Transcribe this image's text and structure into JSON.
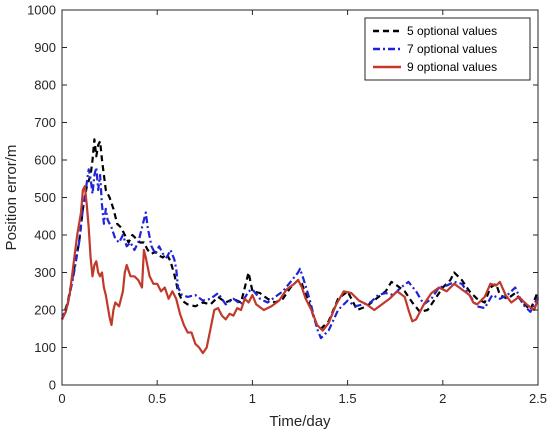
{
  "chart_data": {
    "type": "line",
    "xlabel": "Time/day",
    "ylabel": "Position error/m",
    "xlim": [
      0,
      2.5
    ],
    "ylim": [
      0,
      1000
    ],
    "xticks": [
      0,
      0.5,
      1,
      1.5,
      2,
      2.5
    ],
    "xtick_labels": [
      "0",
      "0.5",
      "1",
      "1.5",
      "2",
      "2.5"
    ],
    "yticks": [
      0,
      100,
      200,
      300,
      400,
      500,
      600,
      700,
      800,
      900,
      1000
    ],
    "ytick_labels": [
      "0",
      "100",
      "200",
      "300",
      "400",
      "500",
      "600",
      "700",
      "800",
      "900",
      "1000"
    ],
    "grid": false,
    "legend_position": "top-right",
    "series": [
      {
        "name": "5 optional values",
        "color": "#000000",
        "dash": "dashed",
        "points": [
          [
            0,
            175
          ],
          [
            0.03,
            220
          ],
          [
            0.06,
            300
          ],
          [
            0.09,
            380
          ],
          [
            0.11,
            470
          ],
          [
            0.13,
            530
          ],
          [
            0.15,
            560
          ],
          [
            0.16,
            600
          ],
          [
            0.17,
            655
          ],
          [
            0.18,
            610
          ],
          [
            0.19,
            640
          ],
          [
            0.2,
            650
          ],
          [
            0.21,
            600
          ],
          [
            0.22,
            560
          ],
          [
            0.23,
            520
          ],
          [
            0.25,
            500
          ],
          [
            0.27,
            470
          ],
          [
            0.29,
            430
          ],
          [
            0.31,
            420
          ],
          [
            0.33,
            400
          ],
          [
            0.35,
            380
          ],
          [
            0.37,
            400
          ],
          [
            0.39,
            390
          ],
          [
            0.41,
            380
          ],
          [
            0.43,
            380
          ],
          [
            0.45,
            360
          ],
          [
            0.47,
            350
          ],
          [
            0.49,
            355
          ],
          [
            0.51,
            345
          ],
          [
            0.53,
            340
          ],
          [
            0.55,
            350
          ],
          [
            0.57,
            330
          ],
          [
            0.59,
            295
          ],
          [
            0.61,
            250
          ],
          [
            0.63,
            225
          ],
          [
            0.66,
            215
          ],
          [
            0.7,
            210
          ],
          [
            0.74,
            220
          ],
          [
            0.78,
            215
          ],
          [
            0.82,
            235
          ],
          [
            0.86,
            220
          ],
          [
            0.9,
            230
          ],
          [
            0.94,
            220
          ],
          [
            0.96,
            260
          ],
          [
            0.98,
            300
          ],
          [
            1.0,
            250
          ],
          [
            1.04,
            245
          ],
          [
            1.08,
            230
          ],
          [
            1.12,
            220
          ],
          [
            1.16,
            230
          ],
          [
            1.2,
            260
          ],
          [
            1.24,
            280
          ],
          [
            1.26,
            270
          ],
          [
            1.3,
            215
          ],
          [
            1.34,
            155
          ],
          [
            1.36,
            150
          ],
          [
            1.4,
            170
          ],
          [
            1.45,
            230
          ],
          [
            1.5,
            250
          ],
          [
            1.55,
            200
          ],
          [
            1.6,
            210
          ],
          [
            1.65,
            230
          ],
          [
            1.7,
            250
          ],
          [
            1.73,
            275
          ],
          [
            1.76,
            265
          ],
          [
            1.8,
            250
          ],
          [
            1.84,
            220
          ],
          [
            1.88,
            195
          ],
          [
            1.92,
            200
          ],
          [
            1.96,
            230
          ],
          [
            2.0,
            260
          ],
          [
            2.04,
            280
          ],
          [
            2.06,
            300
          ],
          [
            2.1,
            280
          ],
          [
            2.14,
            250
          ],
          [
            2.18,
            230
          ],
          [
            2.22,
            220
          ],
          [
            2.25,
            260
          ],
          [
            2.28,
            270
          ],
          [
            2.3,
            240
          ],
          [
            2.34,
            230
          ],
          [
            2.38,
            245
          ],
          [
            2.42,
            220
          ],
          [
            2.46,
            200
          ],
          [
            2.5,
            250
          ]
        ]
      },
      {
        "name": "7 optional values",
        "color": "#1f24d8",
        "dash": "dashdot",
        "points": [
          [
            0,
            175
          ],
          [
            0.03,
            215
          ],
          [
            0.06,
            290
          ],
          [
            0.09,
            380
          ],
          [
            0.11,
            470
          ],
          [
            0.12,
            500
          ],
          [
            0.13,
            540
          ],
          [
            0.14,
            575
          ],
          [
            0.15,
            550
          ],
          [
            0.16,
            510
          ],
          [
            0.17,
            560
          ],
          [
            0.18,
            580
          ],
          [
            0.19,
            520
          ],
          [
            0.2,
            560
          ],
          [
            0.21,
            480
          ],
          [
            0.22,
            430
          ],
          [
            0.23,
            470
          ],
          [
            0.24,
            440
          ],
          [
            0.26,
            420
          ],
          [
            0.28,
            390
          ],
          [
            0.3,
            380
          ],
          [
            0.32,
            400
          ],
          [
            0.34,
            370
          ],
          [
            0.36,
            380
          ],
          [
            0.38,
            360
          ],
          [
            0.4,
            380
          ],
          [
            0.42,
            420
          ],
          [
            0.44,
            460
          ],
          [
            0.45,
            420
          ],
          [
            0.47,
            370
          ],
          [
            0.49,
            350
          ],
          [
            0.51,
            370
          ],
          [
            0.53,
            350
          ],
          [
            0.55,
            340
          ],
          [
            0.57,
            360
          ],
          [
            0.59,
            335
          ],
          [
            0.6,
            310
          ],
          [
            0.61,
            260
          ],
          [
            0.63,
            240
          ],
          [
            0.66,
            235
          ],
          [
            0.7,
            240
          ],
          [
            0.74,
            225
          ],
          [
            0.78,
            230
          ],
          [
            0.82,
            245
          ],
          [
            0.86,
            215
          ],
          [
            0.9,
            230
          ],
          [
            0.94,
            215
          ],
          [
            0.98,
            250
          ],
          [
            1.0,
            255
          ],
          [
            1.04,
            230
          ],
          [
            1.08,
            220
          ],
          [
            1.12,
            235
          ],
          [
            1.16,
            250
          ],
          [
            1.2,
            275
          ],
          [
            1.24,
            300
          ],
          [
            1.25,
            310
          ],
          [
            1.27,
            280
          ],
          [
            1.3,
            230
          ],
          [
            1.34,
            150
          ],
          [
            1.36,
            125
          ],
          [
            1.4,
            145
          ],
          [
            1.45,
            200
          ],
          [
            1.5,
            225
          ],
          [
            1.54,
            210
          ],
          [
            1.58,
            215
          ],
          [
            1.62,
            220
          ],
          [
            1.66,
            240
          ],
          [
            1.7,
            245
          ],
          [
            1.74,
            240
          ],
          [
            1.78,
            260
          ],
          [
            1.82,
            275
          ],
          [
            1.86,
            250
          ],
          [
            1.9,
            215
          ],
          [
            1.94,
            230
          ],
          [
            1.98,
            260
          ],
          [
            2.02,
            265
          ],
          [
            2.06,
            275
          ],
          [
            2.1,
            270
          ],
          [
            2.14,
            240
          ],
          [
            2.18,
            210
          ],
          [
            2.22,
            205
          ],
          [
            2.26,
            240
          ],
          [
            2.3,
            230
          ],
          [
            2.34,
            240
          ],
          [
            2.38,
            260
          ],
          [
            2.42,
            215
          ],
          [
            2.46,
            195
          ],
          [
            2.5,
            235
          ]
        ]
      },
      {
        "name": "9 optional values",
        "color": "#c0392b",
        "dash": "solid",
        "points": [
          [
            0,
            175
          ],
          [
            0.02,
            195
          ],
          [
            0.04,
            240
          ],
          [
            0.06,
            320
          ],
          [
            0.08,
            400
          ],
          [
            0.1,
            460
          ],
          [
            0.11,
            520
          ],
          [
            0.12,
            530
          ],
          [
            0.13,
            480
          ],
          [
            0.14,
            420
          ],
          [
            0.15,
            340
          ],
          [
            0.16,
            290
          ],
          [
            0.17,
            320
          ],
          [
            0.18,
            330
          ],
          [
            0.19,
            300
          ],
          [
            0.2,
            290
          ],
          [
            0.21,
            300
          ],
          [
            0.22,
            260
          ],
          [
            0.23,
            240
          ],
          [
            0.24,
            210
          ],
          [
            0.25,
            180
          ],
          [
            0.26,
            160
          ],
          [
            0.27,
            200
          ],
          [
            0.28,
            220
          ],
          [
            0.3,
            210
          ],
          [
            0.32,
            250
          ],
          [
            0.33,
            300
          ],
          [
            0.34,
            320
          ],
          [
            0.36,
            290
          ],
          [
            0.38,
            290
          ],
          [
            0.4,
            280
          ],
          [
            0.42,
            260
          ],
          [
            0.43,
            360
          ],
          [
            0.44,
            340
          ],
          [
            0.46,
            290
          ],
          [
            0.48,
            270
          ],
          [
            0.5,
            270
          ],
          [
            0.52,
            250
          ],
          [
            0.54,
            260
          ],
          [
            0.56,
            230
          ],
          [
            0.58,
            250
          ],
          [
            0.6,
            230
          ],
          [
            0.62,
            190
          ],
          [
            0.64,
            160
          ],
          [
            0.66,
            140
          ],
          [
            0.68,
            140
          ],
          [
            0.7,
            110
          ],
          [
            0.72,
            100
          ],
          [
            0.74,
            85
          ],
          [
            0.76,
            100
          ],
          [
            0.78,
            150
          ],
          [
            0.8,
            200
          ],
          [
            0.82,
            205
          ],
          [
            0.84,
            185
          ],
          [
            0.86,
            175
          ],
          [
            0.88,
            190
          ],
          [
            0.9,
            185
          ],
          [
            0.92,
            205
          ],
          [
            0.94,
            200
          ],
          [
            0.96,
            230
          ],
          [
            0.98,
            220
          ],
          [
            1.0,
            240
          ],
          [
            1.02,
            215
          ],
          [
            1.06,
            200
          ],
          [
            1.1,
            210
          ],
          [
            1.14,
            225
          ],
          [
            1.18,
            255
          ],
          [
            1.22,
            270
          ],
          [
            1.24,
            280
          ],
          [
            1.26,
            260
          ],
          [
            1.28,
            230
          ],
          [
            1.31,
            200
          ],
          [
            1.34,
            160
          ],
          [
            1.37,
            145
          ],
          [
            1.4,
            165
          ],
          [
            1.44,
            215
          ],
          [
            1.48,
            250
          ],
          [
            1.52,
            245
          ],
          [
            1.56,
            225
          ],
          [
            1.6,
            215
          ],
          [
            1.64,
            200
          ],
          [
            1.68,
            215
          ],
          [
            1.72,
            230
          ],
          [
            1.76,
            250
          ],
          [
            1.8,
            235
          ],
          [
            1.82,
            200
          ],
          [
            1.84,
            170
          ],
          [
            1.86,
            175
          ],
          [
            1.9,
            215
          ],
          [
            1.94,
            245
          ],
          [
            1.98,
            260
          ],
          [
            2.02,
            250
          ],
          [
            2.06,
            270
          ],
          [
            2.1,
            255
          ],
          [
            2.14,
            240
          ],
          [
            2.16,
            220
          ],
          [
            2.18,
            215
          ],
          [
            2.22,
            235
          ],
          [
            2.25,
            270
          ],
          [
            2.28,
            265
          ],
          [
            2.3,
            275
          ],
          [
            2.33,
            240
          ],
          [
            2.36,
            220
          ],
          [
            2.4,
            235
          ],
          [
            2.44,
            215
          ],
          [
            2.48,
            200
          ],
          [
            2.5,
            230
          ]
        ]
      }
    ]
  }
}
